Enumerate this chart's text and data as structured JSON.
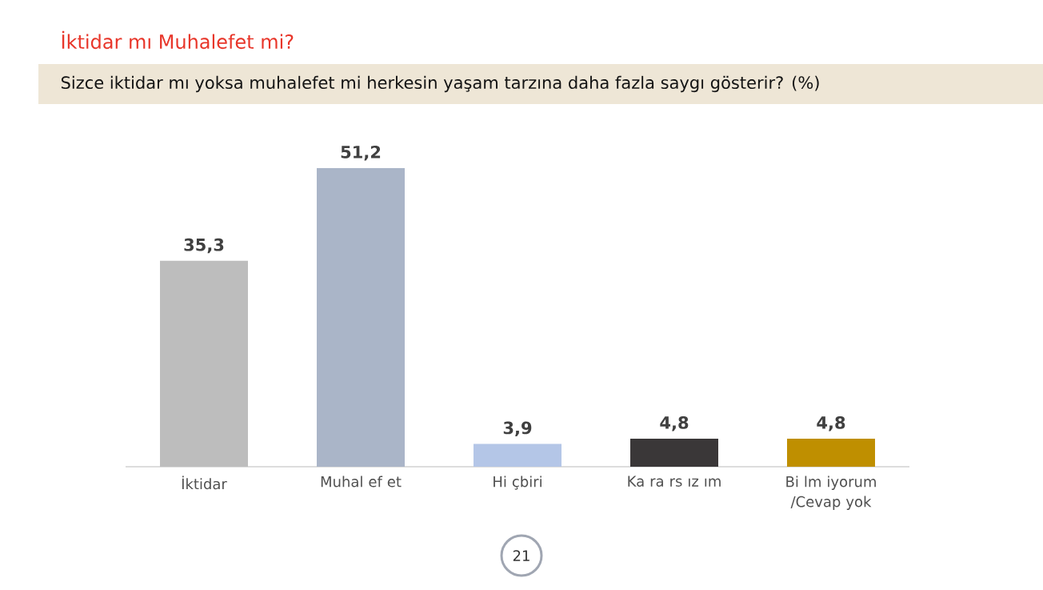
{
  "chart_data": {
    "type": "bar",
    "title": "İktidar mı Muhalefet mi?",
    "subtitle": "Sizce iktidar mı yoksa muhalefet mi herkesin yaşam tarzına daha fazla saygı gösterir? (%)",
    "categories": [
      "İktidar",
      "Muhal ef et",
      "Hi çbiri",
      "Ka ra rs ız ım",
      "Bi lm iyorum /Cevap yok"
    ],
    "values": [
      35.3,
      51.2,
      3.9,
      4.8,
      4.8
    ],
    "value_labels": [
      "35,3",
      "51,2",
      "3,9",
      "4,8",
      "4,8"
    ],
    "colors": [
      "#bdbdbd",
      "#aab5c8",
      "#b4c6e7",
      "#3a3738",
      "#bf8f00"
    ],
    "annotations": [
      "21"
    ]
  }
}
